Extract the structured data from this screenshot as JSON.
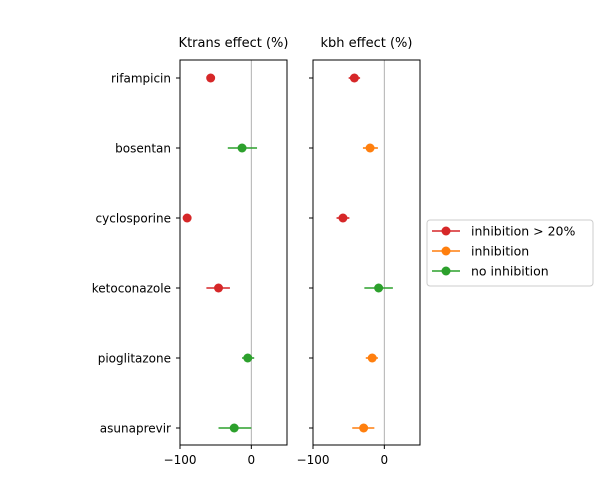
{
  "chart_data": [
    {
      "type": "scatter",
      "title": "Ktrans effect (%)",
      "xlim": [
        -100,
        50
      ],
      "xticks": [
        -100,
        0
      ],
      "categories": [
        "rifampicin",
        "bosentan",
        "cyclosporine",
        "ketoconazole",
        "pioglitazone",
        "asunaprevir"
      ],
      "grid": "vertical line at x = 0",
      "points": [
        {
          "drug": "rifampicin",
          "value": -57,
          "err_low": -57,
          "err_high": -57,
          "class": "inhibition > 20%"
        },
        {
          "drug": "bosentan",
          "value": -13,
          "err_low": -33,
          "err_high": 8,
          "class": "no inhibition"
        },
        {
          "drug": "cyclosporine",
          "value": -90,
          "err_low": -90,
          "err_high": -90,
          "class": "inhibition > 20%"
        },
        {
          "drug": "ketoconazole",
          "value": -46,
          "err_low": -63,
          "err_high": -30,
          "class": "inhibition > 20%"
        },
        {
          "drug": "pioglitazone",
          "value": -5,
          "err_low": -13,
          "err_high": 4,
          "class": "no inhibition"
        },
        {
          "drug": "asunaprevir",
          "value": -24,
          "err_low": -46,
          "err_high": 0,
          "class": "no inhibition"
        }
      ]
    },
    {
      "type": "scatter",
      "title": "kbh effect (%)",
      "xlim": [
        -100,
        50
      ],
      "xticks": [
        -100,
        0
      ],
      "categories": [
        "rifampicin",
        "bosentan",
        "cyclosporine",
        "ketoconazole",
        "pioglitazone",
        "asunaprevir"
      ],
      "grid": "vertical line at x = 0",
      "points": [
        {
          "drug": "rifampicin",
          "value": -42,
          "err_low": -50,
          "err_high": -34,
          "class": "inhibition > 20%"
        },
        {
          "drug": "bosentan",
          "value": -20,
          "err_low": -30,
          "err_high": -9,
          "class": "inhibition"
        },
        {
          "drug": "cyclosporine",
          "value": -58,
          "err_low": -67,
          "err_high": -49,
          "class": "inhibition > 20%"
        },
        {
          "drug": "ketoconazole",
          "value": -8,
          "err_low": -28,
          "err_high": 12,
          "class": "no inhibition"
        },
        {
          "drug": "pioglitazone",
          "value": -17,
          "err_low": -26,
          "err_high": -9,
          "class": "inhibition"
        },
        {
          "drug": "asunaprevir",
          "value": -29,
          "err_low": -45,
          "err_high": -14,
          "class": "inhibition"
        }
      ]
    }
  ],
  "legend": {
    "placement": "right",
    "entries": [
      {
        "label": "inhibition > 20%",
        "color": "#d62728",
        "icon": "line-with-circle-marker"
      },
      {
        "label": "inhibition",
        "color": "#ff7f0e",
        "icon": "line-with-circle-marker"
      },
      {
        "label": "no inhibition",
        "color": "#2ca02c",
        "icon": "line-with-circle-marker"
      }
    ]
  },
  "colors": {
    "inhibition > 20%": "#d62728",
    "inhibition": "#ff7f0e",
    "no inhibition": "#2ca02c",
    "zero_line": "#b0b0b0"
  }
}
